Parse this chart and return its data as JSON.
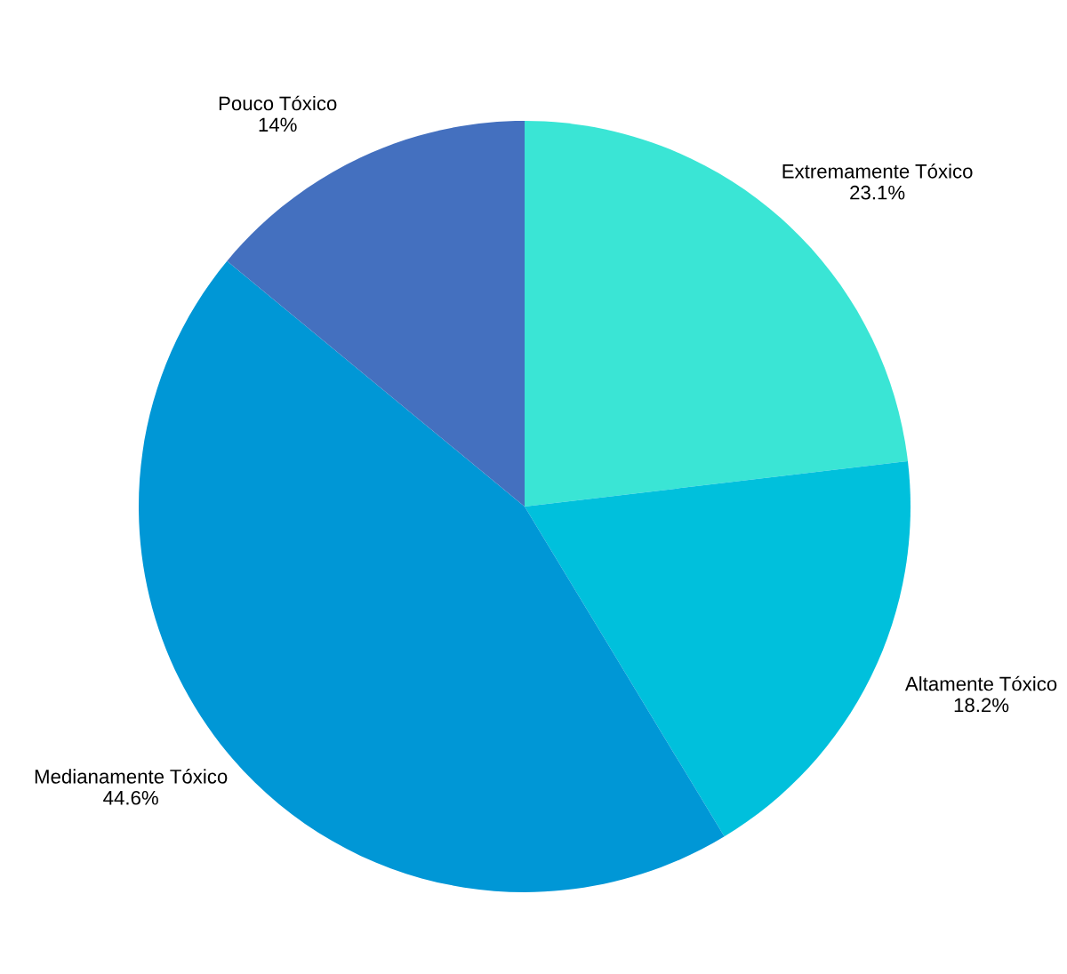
{
  "chart_data": {
    "type": "pie",
    "categories": [
      "Extremamente Tóxico",
      "Altamente Tóxico",
      "Medianamente Tóxico",
      "Pouco Tóxico"
    ],
    "values": [
      23.1,
      18.2,
      44.6,
      14
    ],
    "value_labels": [
      "23.1%",
      "18.2%",
      "44.6%",
      "14%"
    ],
    "colors": [
      "#3ae5d5",
      "#00c0dc",
      "#0097d6",
      "#4470bf"
    ],
    "legend": false
  }
}
